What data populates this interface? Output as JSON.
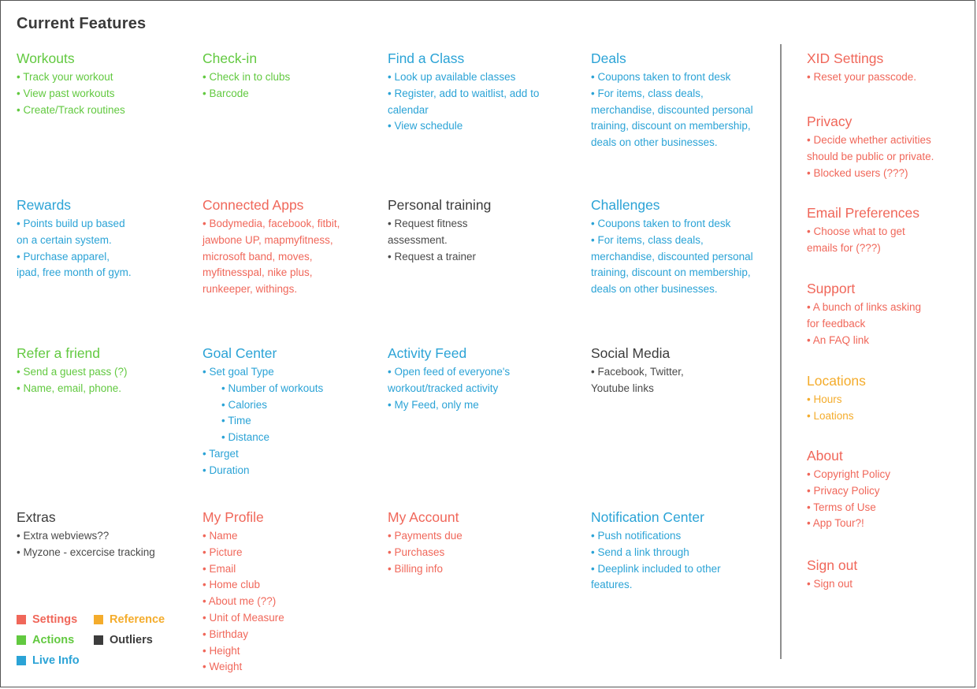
{
  "page_title": "Current Features",
  "colors": {
    "settings": "#f0675a",
    "reference": "#f4ac2c",
    "actions": "#62c940",
    "outliers": "#3c3c3c",
    "live_info": "#2ba3d6"
  },
  "sections": {
    "workouts": {
      "title": "Workouts",
      "items": [
        "• Track your workout",
        "• View past workouts",
        "• Create/Track routines"
      ]
    },
    "checkin": {
      "title": "Check-in",
      "items": [
        "• Check in to clubs",
        "• Barcode"
      ]
    },
    "find_class": {
      "title": "Find a Class",
      "items": [
        "• Look up available classes",
        "• Register, add to waitlist, add to calendar",
        "• View schedule"
      ]
    },
    "deals": {
      "title": "Deals",
      "items": [
        "• Coupons taken to front desk",
        "• For items, class deals, merchandise, discounted personal training, discount on membership, deals on other businesses."
      ]
    },
    "rewards": {
      "title": "Rewards",
      "items": [
        "• Points build up based on a certain system.",
        "• Purchase apparel, ipad, free month of gym."
      ]
    },
    "connected_apps": {
      "title": "Connected Apps",
      "items": [
        "• Bodymedia, facebook, fitbit, jawbone UP, mapmyfitness, microsoft band, moves, myfitnesspal, nike plus, runkeeper, withings."
      ]
    },
    "personal_training": {
      "title": "Personal training",
      "items": [
        "• Request fitness assessment.",
        "• Request a trainer"
      ]
    },
    "challenges": {
      "title": "Challenges",
      "items": [
        "• Coupons taken to front desk",
        "• For items, class deals, merchandise, discounted personal training, discount on membership, deals on other businesses."
      ]
    },
    "refer_friend": {
      "title": "Refer a friend",
      "items": [
        "• Send a guest pass (?)",
        "• Name, email, phone."
      ]
    },
    "goal_center": {
      "title": "Goal Center",
      "items": [
        "• Set goal Type",
        "• Number of workouts",
        "• Calories",
        "• Time",
        "• Distance",
        "• Target",
        "• Duration"
      ]
    },
    "activity_feed": {
      "title": "Activity Feed",
      "items": [
        "• Open feed of everyone's workout/tracked activity",
        "• My Feed, only me"
      ]
    },
    "social_media": {
      "title": "Social Media",
      "items": [
        "• Facebook, Twitter, Youtube links"
      ]
    },
    "extras": {
      "title": "Extras",
      "items": [
        "• Extra webviews??",
        "• Myzone - excercise tracking"
      ]
    },
    "my_profile": {
      "title": "My Profile",
      "items": [
        "• Name",
        "• Picture",
        "• Email",
        "• Home club",
        "• About me (??)",
        "• Unit of Measure",
        "• Birthday",
        "• Height",
        "• Weight"
      ]
    },
    "my_account": {
      "title": "My Account",
      "items": [
        "• Payments due",
        "• Purchases",
        "• Billing info"
      ]
    },
    "notification_center": {
      "title": "Notification Center",
      "items": [
        "• Push notifications",
        "• Send a link through",
        "• Deeplink included to other features."
      ]
    },
    "xid_settings": {
      "title": "XID Settings",
      "items": [
        "• Reset your passcode."
      ]
    },
    "privacy": {
      "title": "Privacy",
      "items": [
        "• Decide whether activities should be public or private.",
        "• Blocked users (???)"
      ]
    },
    "email_preferences": {
      "title": "Email Preferences",
      "items": [
        "• Choose what to get emails for (???)"
      ]
    },
    "support": {
      "title": "Support",
      "items": [
        "• A bunch of links asking for feedback",
        "• An FAQ link"
      ]
    },
    "locations": {
      "title": "Locations",
      "items": [
        "• Hours",
        "• Loations"
      ]
    },
    "about": {
      "title": "About",
      "items": [
        "• Copyright Policy",
        "• Privacy Policy",
        "• Terms of Use",
        "• App Tour?!"
      ]
    },
    "sign_out": {
      "title": "Sign out",
      "items": [
        "• Sign out"
      ]
    }
  },
  "legend": {
    "settings": "Settings",
    "reference": "Reference",
    "actions": "Actions",
    "outliers": "Outliers",
    "live_info": "Live Info"
  }
}
